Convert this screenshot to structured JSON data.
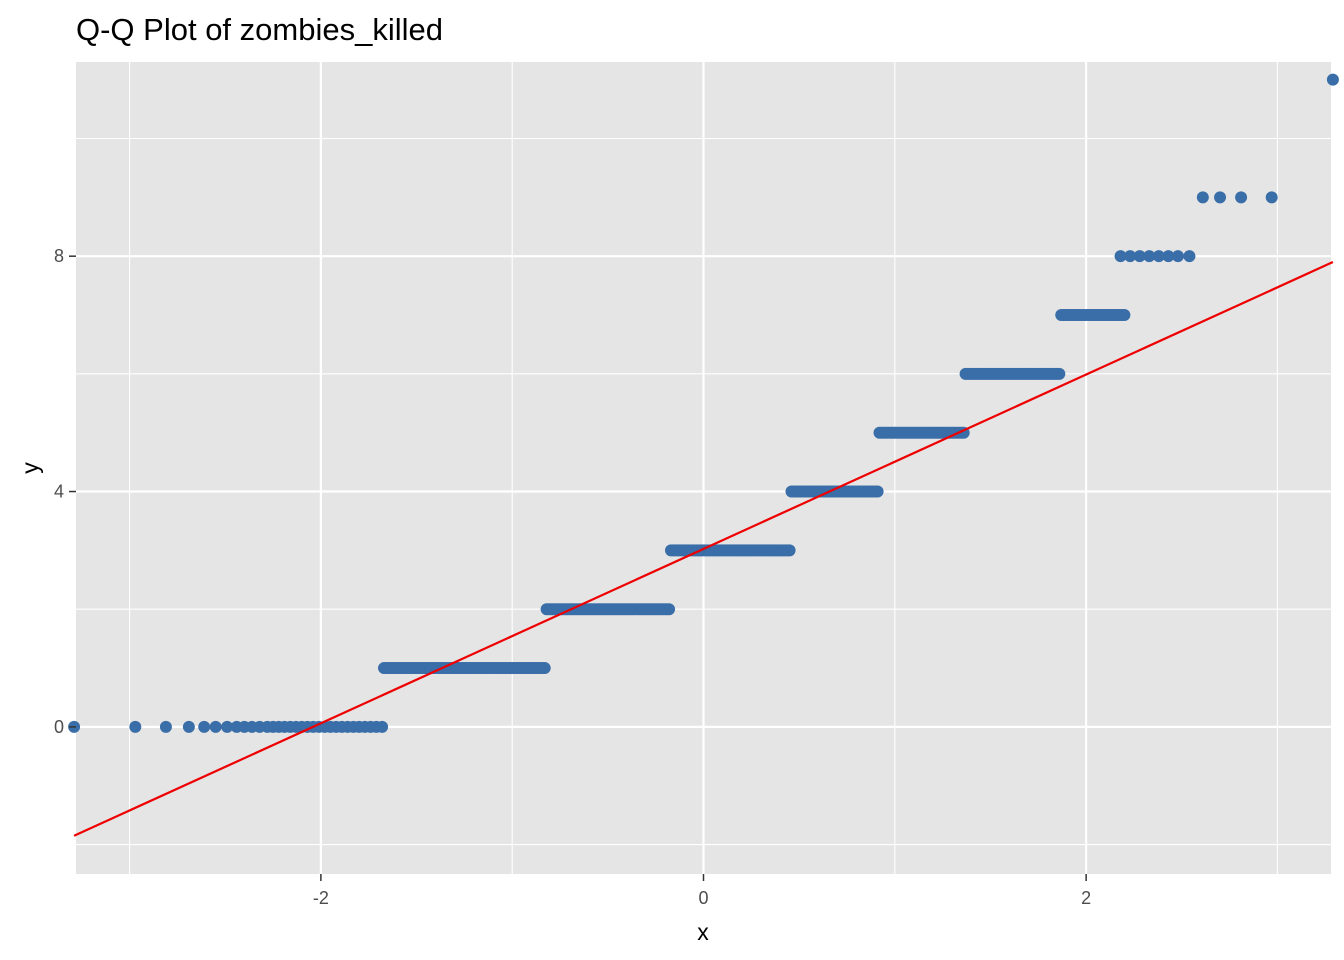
{
  "chart_data": {
    "type": "scatter",
    "title": "Q-Q Plot of zombies_killed",
    "xlabel": "x",
    "ylabel": "y",
    "xlim": [
      -3.28,
      3.28
    ],
    "ylim": [
      -2.5,
      11.3
    ],
    "x_ticks": [
      -2,
      0,
      2
    ],
    "x_tick_labels": [
      "-2",
      "0",
      "2"
    ],
    "y_ticks": [
      0,
      4,
      8
    ],
    "y_tick_labels": [
      "0",
      "4",
      "8"
    ],
    "grid": true,
    "legend": "none",
    "panel_background": "#e5e5e5",
    "grid_color": "#ffffff",
    "point_color": "#3a6ea8",
    "line_color": "#ee0000",
    "series": [
      {
        "type": "points",
        "groups": [
          {
            "y": 0,
            "x": [
              -3.29,
              -2.97,
              -2.81,
              -2.69,
              -2.61,
              -2.55,
              -2.49,
              -2.44,
              -2.4,
              -2.36,
              -2.32,
              -2.28,
              -2.25,
              -2.22,
              -2.19,
              -2.16,
              -2.13,
              -2.1,
              -2.07,
              -2.04,
              -2.01,
              -1.98,
              -1.95,
              -1.92,
              -1.89,
              -1.86,
              -1.83,
              -1.8,
              -1.77,
              -1.74,
              -1.71,
              -1.68
            ]
          },
          {
            "y": 1,
            "x_range": [
              -1.67,
              -0.83
            ]
          },
          {
            "y": 2,
            "x_range": [
              -0.82,
              -0.18
            ]
          },
          {
            "y": 3,
            "x_range": [
              -0.17,
              0.45
            ]
          },
          {
            "y": 4,
            "x_range": [
              0.46,
              0.91
            ]
          },
          {
            "y": 5,
            "x_range": [
              0.92,
              1.36
            ]
          },
          {
            "y": 6,
            "x_range": [
              1.37,
              1.86
            ]
          },
          {
            "y": 7,
            "x_range": [
              1.87,
              2.2
            ]
          },
          {
            "y": 8,
            "x": [
              2.18,
              2.23,
              2.28,
              2.33,
              2.38,
              2.43,
              2.48,
              2.54
            ]
          },
          {
            "y": 9,
            "x": [
              2.61,
              2.7,
              2.81,
              2.97
            ]
          },
          {
            "y": 11,
            "x": [
              3.29
            ]
          }
        ]
      },
      {
        "type": "reference_line",
        "x": [
          -3.29,
          3.29
        ],
        "y": [
          -1.85,
          7.9
        ]
      }
    ]
  }
}
